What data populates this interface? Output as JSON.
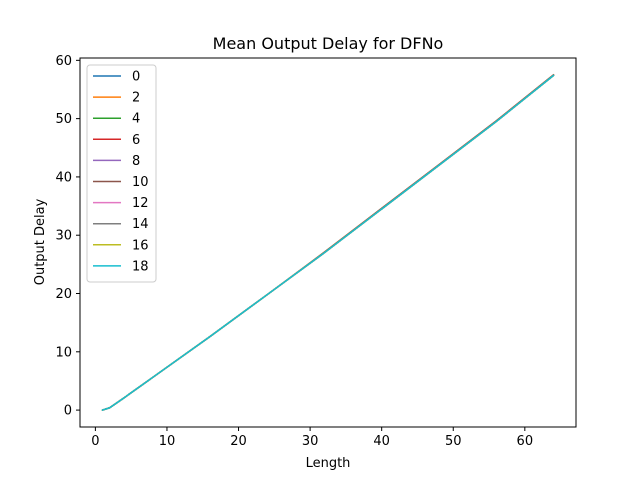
{
  "chart_data": {
    "type": "line",
    "title": "Mean Output Delay for DFNo",
    "xlabel": "Length",
    "ylabel": "Output Delay",
    "xlim": [
      -2.15,
      67.15
    ],
    "ylim": [
      -2.9,
      60.4
    ],
    "xticks": [
      0,
      10,
      20,
      30,
      40,
      50,
      60
    ],
    "yticks": [
      0,
      10,
      20,
      30,
      40,
      50,
      60
    ],
    "grid": false,
    "legend_position": "top-left",
    "x": [
      1,
      2,
      4,
      8,
      16,
      24,
      32,
      40,
      48,
      56,
      64
    ],
    "series": [
      {
        "name": "0",
        "color": "#1f77b4",
        "values": [
          0.0,
          0.4,
          2.1,
          5.6,
          12.6,
          19.8,
          27.0,
          34.5,
          42.0,
          49.5,
          57.4
        ]
      },
      {
        "name": "2",
        "color": "#ff7f0e",
        "values": [
          0.0,
          0.4,
          2.1,
          5.6,
          12.6,
          19.8,
          27.1,
          34.6,
          42.1,
          49.6,
          57.5
        ]
      },
      {
        "name": "4",
        "color": "#2ca02c",
        "values": [
          0.0,
          0.4,
          2.1,
          5.6,
          12.6,
          19.8,
          27.0,
          34.5,
          42.0,
          49.5,
          57.4
        ]
      },
      {
        "name": "6",
        "color": "#d62728",
        "values": [
          0.0,
          0.4,
          2.1,
          5.6,
          12.6,
          19.8,
          27.0,
          34.6,
          42.1,
          49.6,
          57.5
        ]
      },
      {
        "name": "8",
        "color": "#9467bd",
        "values": [
          0.0,
          0.4,
          2.1,
          5.6,
          12.6,
          19.8,
          27.0,
          34.5,
          42.0,
          49.5,
          57.4
        ]
      },
      {
        "name": "10",
        "color": "#8c564b",
        "values": [
          0.0,
          0.4,
          2.1,
          5.6,
          12.6,
          19.8,
          27.1,
          34.6,
          42.1,
          49.6,
          57.5
        ]
      },
      {
        "name": "12",
        "color": "#e377c2",
        "values": [
          0.0,
          0.4,
          2.1,
          5.6,
          12.6,
          19.8,
          27.0,
          34.5,
          42.0,
          49.5,
          57.4
        ]
      },
      {
        "name": "14",
        "color": "#7f7f7f",
        "values": [
          0.0,
          0.4,
          2.1,
          5.6,
          12.6,
          19.8,
          27.0,
          34.5,
          42.0,
          49.5,
          57.4
        ]
      },
      {
        "name": "16",
        "color": "#bcbd22",
        "values": [
          0.0,
          0.4,
          2.1,
          5.6,
          12.6,
          19.8,
          27.0,
          34.5,
          42.0,
          49.5,
          57.4
        ]
      },
      {
        "name": "18",
        "color": "#17becf",
        "values": [
          0.0,
          0.4,
          2.1,
          5.6,
          12.6,
          19.8,
          27.0,
          34.5,
          42.0,
          49.5,
          57.4
        ]
      }
    ]
  }
}
